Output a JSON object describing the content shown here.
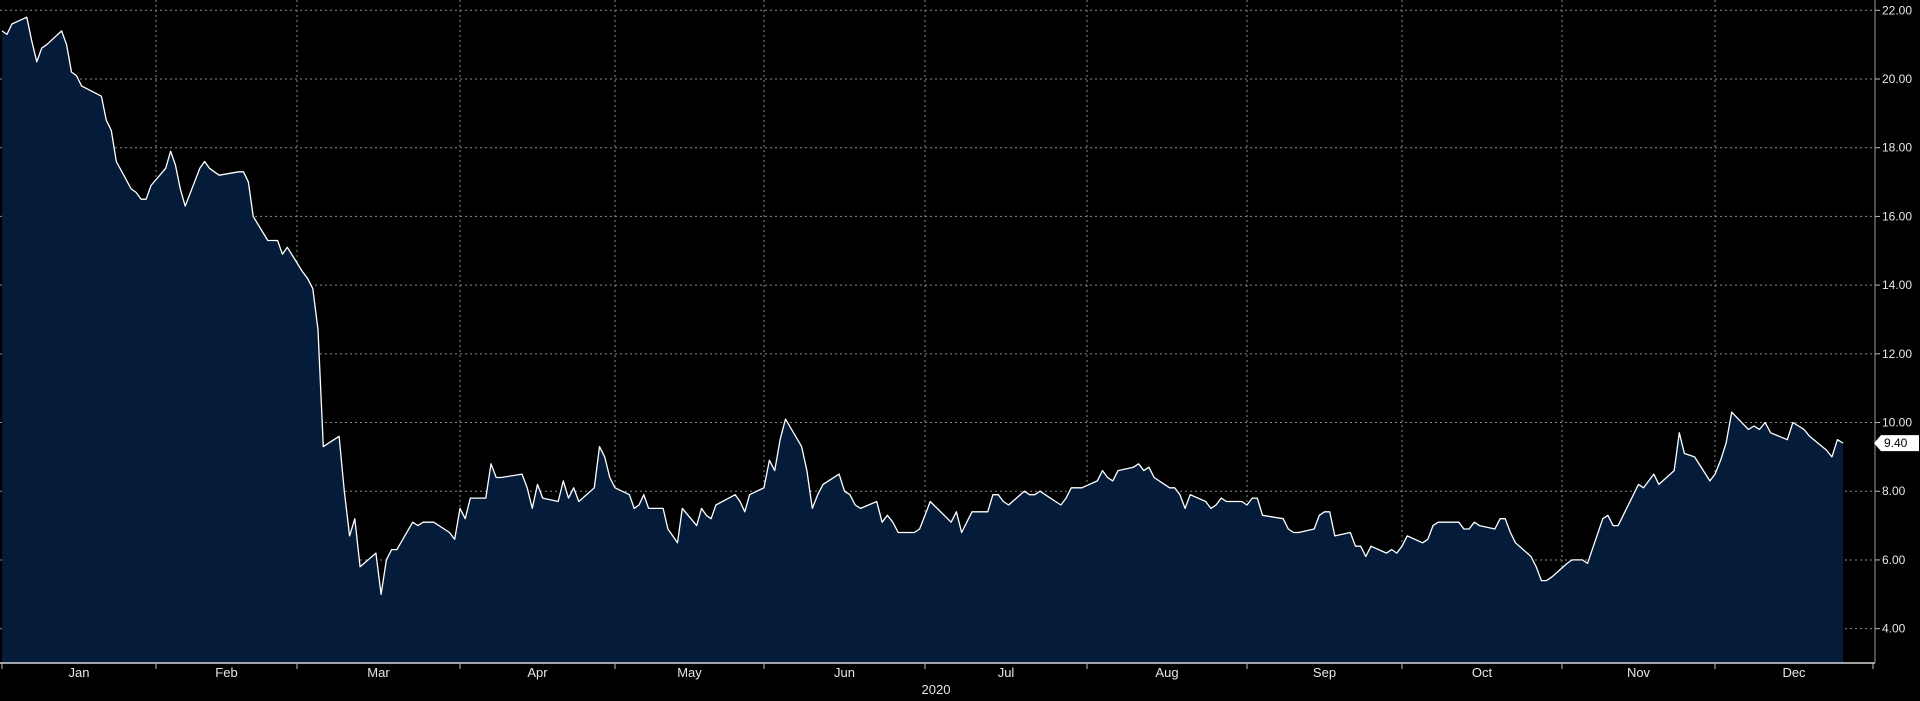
{
  "chart_data": {
    "type": "area",
    "x_label": "2020",
    "months": [
      "Jan",
      "Feb",
      "Mar",
      "Apr",
      "May",
      "Jun",
      "Jul",
      "Aug",
      "Sep",
      "Oct",
      "Nov",
      "Dec"
    ],
    "ylim": [
      3.0,
      22.3
    ],
    "yticks": [
      "4.00",
      "6.00",
      "8.00",
      "10.00",
      "12.00",
      "14.00",
      "16.00",
      "18.00",
      "20.00",
      "22.00"
    ],
    "grid": true,
    "y_axis_position": "right",
    "last_value_label": "9.40",
    "colors": {
      "background": "#000000",
      "fill": "#041c3a",
      "line": "#ffffff",
      "grid": "#8a8a8a",
      "text": "#e6e6e6"
    },
    "series": [
      {
        "points": [
          [
            "2020-01-01",
            21.4
          ],
          [
            "2020-01-02",
            21.3
          ],
          [
            "2020-01-03",
            21.6
          ],
          [
            "2020-01-06",
            21.8
          ],
          [
            "2020-01-07",
            21.1
          ],
          [
            "2020-01-08",
            20.5
          ],
          [
            "2020-01-09",
            20.9
          ],
          [
            "2020-01-10",
            21.0
          ],
          [
            "2020-01-13",
            21.4
          ],
          [
            "2020-01-14",
            21.0
          ],
          [
            "2020-01-15",
            20.2
          ],
          [
            "2020-01-16",
            20.1
          ],
          [
            "2020-01-17",
            19.8
          ],
          [
            "2020-01-21",
            19.5
          ],
          [
            "2020-01-22",
            18.8
          ],
          [
            "2020-01-23",
            18.5
          ],
          [
            "2020-01-24",
            17.6
          ],
          [
            "2020-01-27",
            16.8
          ],
          [
            "2020-01-28",
            16.7
          ],
          [
            "2020-01-29",
            16.5
          ],
          [
            "2020-01-30",
            16.5
          ],
          [
            "2020-01-31",
            16.9
          ],
          [
            "2020-02-03",
            17.4
          ],
          [
            "2020-02-04",
            17.9
          ],
          [
            "2020-02-05",
            17.5
          ],
          [
            "2020-02-06",
            16.8
          ],
          [
            "2020-02-07",
            16.3
          ],
          [
            "2020-02-10",
            17.4
          ],
          [
            "2020-02-11",
            17.6
          ],
          [
            "2020-02-12",
            17.4
          ],
          [
            "2020-02-13",
            17.3
          ],
          [
            "2020-02-14",
            17.2
          ],
          [
            "2020-02-18",
            17.3
          ],
          [
            "2020-02-19",
            17.3
          ],
          [
            "2020-02-20",
            17.0
          ],
          [
            "2020-02-21",
            16.0
          ],
          [
            "2020-02-24",
            15.3
          ],
          [
            "2020-02-25",
            15.3
          ],
          [
            "2020-02-26",
            15.3
          ],
          [
            "2020-02-27",
            14.9
          ],
          [
            "2020-02-28",
            15.1
          ],
          [
            "2020-03-02",
            14.4
          ],
          [
            "2020-03-03",
            14.2
          ],
          [
            "2020-03-04",
            13.9
          ],
          [
            "2020-03-05",
            12.7
          ],
          [
            "2020-03-06",
            9.3
          ],
          [
            "2020-03-09",
            9.6
          ],
          [
            "2020-03-10",
            8.0
          ],
          [
            "2020-03-11",
            6.7
          ],
          [
            "2020-03-12",
            7.2
          ],
          [
            "2020-03-13",
            5.8
          ],
          [
            "2020-03-16",
            6.2
          ],
          [
            "2020-03-17",
            5.0
          ],
          [
            "2020-03-18",
            6.0
          ],
          [
            "2020-03-19",
            6.3
          ],
          [
            "2020-03-20",
            6.3
          ],
          [
            "2020-03-23",
            7.1
          ],
          [
            "2020-03-24",
            7.0
          ],
          [
            "2020-03-25",
            7.1
          ],
          [
            "2020-03-26",
            7.1
          ],
          [
            "2020-03-27",
            7.1
          ],
          [
            "2020-03-30",
            6.8
          ],
          [
            "2020-03-31",
            6.6
          ],
          [
            "2020-04-01",
            7.5
          ],
          [
            "2020-04-02",
            7.2
          ],
          [
            "2020-04-03",
            7.8
          ],
          [
            "2020-04-06",
            7.8
          ],
          [
            "2020-04-07",
            8.8
          ],
          [
            "2020-04-08",
            8.4
          ],
          [
            "2020-04-09",
            8.4
          ],
          [
            "2020-04-13",
            8.5
          ],
          [
            "2020-04-14",
            8.1
          ],
          [
            "2020-04-15",
            7.5
          ],
          [
            "2020-04-16",
            8.2
          ],
          [
            "2020-04-17",
            7.8
          ],
          [
            "2020-04-20",
            7.7
          ],
          [
            "2020-04-21",
            8.3
          ],
          [
            "2020-04-22",
            7.8
          ],
          [
            "2020-04-23",
            8.1
          ],
          [
            "2020-04-24",
            7.7
          ],
          [
            "2020-04-27",
            8.1
          ],
          [
            "2020-04-28",
            9.3
          ],
          [
            "2020-04-29",
            9.0
          ],
          [
            "2020-04-30",
            8.4
          ],
          [
            "2020-05-01",
            8.1
          ],
          [
            "2020-05-04",
            7.9
          ],
          [
            "2020-05-05",
            7.5
          ],
          [
            "2020-05-06",
            7.6
          ],
          [
            "2020-05-07",
            7.9
          ],
          [
            "2020-05-08",
            7.5
          ],
          [
            "2020-05-11",
            7.5
          ],
          [
            "2020-05-12",
            6.9
          ],
          [
            "2020-05-13",
            6.7
          ],
          [
            "2020-05-14",
            6.5
          ],
          [
            "2020-05-15",
            7.5
          ],
          [
            "2020-05-18",
            7.0
          ],
          [
            "2020-05-19",
            7.5
          ],
          [
            "2020-05-20",
            7.3
          ],
          [
            "2020-05-21",
            7.2
          ],
          [
            "2020-05-22",
            7.6
          ],
          [
            "2020-05-26",
            7.9
          ],
          [
            "2020-05-27",
            7.7
          ],
          [
            "2020-05-28",
            7.4
          ],
          [
            "2020-05-29",
            7.9
          ],
          [
            "2020-06-01",
            8.1
          ],
          [
            "2020-06-02",
            8.9
          ],
          [
            "2020-06-03",
            8.6
          ],
          [
            "2020-06-04",
            9.5
          ],
          [
            "2020-06-05",
            10.1
          ],
          [
            "2020-06-08",
            9.3
          ],
          [
            "2020-06-09",
            8.6
          ],
          [
            "2020-06-10",
            7.5
          ],
          [
            "2020-06-11",
            7.9
          ],
          [
            "2020-06-12",
            8.2
          ],
          [
            "2020-06-15",
            8.5
          ],
          [
            "2020-06-16",
            8.0
          ],
          [
            "2020-06-17",
            7.9
          ],
          [
            "2020-06-18",
            7.6
          ],
          [
            "2020-06-19",
            7.5
          ],
          [
            "2020-06-22",
            7.7
          ],
          [
            "2020-06-23",
            7.1
          ],
          [
            "2020-06-24",
            7.3
          ],
          [
            "2020-06-25",
            7.1
          ],
          [
            "2020-06-26",
            6.8
          ],
          [
            "2020-06-29",
            6.8
          ],
          [
            "2020-06-30",
            6.9
          ],
          [
            "2020-07-01",
            7.3
          ],
          [
            "2020-07-02",
            7.7
          ],
          [
            "2020-07-06",
            7.1
          ],
          [
            "2020-07-07",
            7.4
          ],
          [
            "2020-07-08",
            6.8
          ],
          [
            "2020-07-09",
            7.1
          ],
          [
            "2020-07-10",
            7.4
          ],
          [
            "2020-07-13",
            7.4
          ],
          [
            "2020-07-14",
            7.9
          ],
          [
            "2020-07-15",
            7.9
          ],
          [
            "2020-07-16",
            7.7
          ],
          [
            "2020-07-17",
            7.6
          ],
          [
            "2020-07-20",
            8.0
          ],
          [
            "2020-07-21",
            7.9
          ],
          [
            "2020-07-22",
            7.9
          ],
          [
            "2020-07-23",
            8.0
          ],
          [
            "2020-07-24",
            7.9
          ],
          [
            "2020-07-27",
            7.6
          ],
          [
            "2020-07-28",
            7.8
          ],
          [
            "2020-07-29",
            8.1
          ],
          [
            "2020-07-30",
            8.1
          ],
          [
            "2020-07-31",
            8.1
          ],
          [
            "2020-08-03",
            8.3
          ],
          [
            "2020-08-04",
            8.6
          ],
          [
            "2020-08-05",
            8.4
          ],
          [
            "2020-08-06",
            8.3
          ],
          [
            "2020-08-07",
            8.6
          ],
          [
            "2020-08-10",
            8.7
          ],
          [
            "2020-08-11",
            8.8
          ],
          [
            "2020-08-12",
            8.6
          ],
          [
            "2020-08-13",
            8.7
          ],
          [
            "2020-08-14",
            8.4
          ],
          [
            "2020-08-17",
            8.1
          ],
          [
            "2020-08-18",
            8.1
          ],
          [
            "2020-08-19",
            7.9
          ],
          [
            "2020-08-20",
            7.5
          ],
          [
            "2020-08-21",
            7.9
          ],
          [
            "2020-08-24",
            7.7
          ],
          [
            "2020-08-25",
            7.5
          ],
          [
            "2020-08-26",
            7.6
          ],
          [
            "2020-08-27",
            7.8
          ],
          [
            "2020-08-28",
            7.7
          ],
          [
            "2020-08-31",
            7.7
          ],
          [
            "2020-09-01",
            7.6
          ],
          [
            "2020-09-02",
            7.8
          ],
          [
            "2020-09-03",
            7.8
          ],
          [
            "2020-09-04",
            7.3
          ],
          [
            "2020-09-08",
            7.2
          ],
          [
            "2020-09-09",
            6.9
          ],
          [
            "2020-09-10",
            6.8
          ],
          [
            "2020-09-11",
            6.8
          ],
          [
            "2020-09-14",
            6.9
          ],
          [
            "2020-09-15",
            7.3
          ],
          [
            "2020-09-16",
            7.4
          ],
          [
            "2020-09-17",
            7.4
          ],
          [
            "2020-09-18",
            6.7
          ],
          [
            "2020-09-21",
            6.8
          ],
          [
            "2020-09-22",
            6.4
          ],
          [
            "2020-09-23",
            6.4
          ],
          [
            "2020-09-24",
            6.1
          ],
          [
            "2020-09-25",
            6.4
          ],
          [
            "2020-09-28",
            6.2
          ],
          [
            "2020-09-29",
            6.3
          ],
          [
            "2020-09-30",
            6.2
          ],
          [
            "2020-10-01",
            6.4
          ],
          [
            "2020-10-02",
            6.7
          ],
          [
            "2020-10-05",
            6.5
          ],
          [
            "2020-10-06",
            6.6
          ],
          [
            "2020-10-07",
            7.0
          ],
          [
            "2020-10-08",
            7.1
          ],
          [
            "2020-10-09",
            7.1
          ],
          [
            "2020-10-12",
            7.1
          ],
          [
            "2020-10-13",
            6.9
          ],
          [
            "2020-10-14",
            6.9
          ],
          [
            "2020-10-15",
            7.1
          ],
          [
            "2020-10-16",
            7.0
          ],
          [
            "2020-10-19",
            6.9
          ],
          [
            "2020-10-20",
            7.2
          ],
          [
            "2020-10-21",
            7.2
          ],
          [
            "2020-10-22",
            6.8
          ],
          [
            "2020-10-23",
            6.5
          ],
          [
            "2020-10-26",
            6.1
          ],
          [
            "2020-10-27",
            5.8
          ],
          [
            "2020-10-28",
            5.4
          ],
          [
            "2020-10-29",
            5.4
          ],
          [
            "2020-10-30",
            5.5
          ],
          [
            "2020-11-02",
            5.9
          ],
          [
            "2020-11-03",
            6.0
          ],
          [
            "2020-11-04",
            6.0
          ],
          [
            "2020-11-05",
            6.0
          ],
          [
            "2020-11-06",
            5.9
          ],
          [
            "2020-11-09",
            7.2
          ],
          [
            "2020-11-10",
            7.3
          ],
          [
            "2020-11-11",
            7.0
          ],
          [
            "2020-11-12",
            7.0
          ],
          [
            "2020-11-13",
            7.3
          ],
          [
            "2020-11-16",
            8.2
          ],
          [
            "2020-11-17",
            8.1
          ],
          [
            "2020-11-18",
            8.3
          ],
          [
            "2020-11-19",
            8.5
          ],
          [
            "2020-11-20",
            8.2
          ],
          [
            "2020-11-23",
            8.6
          ],
          [
            "2020-11-24",
            9.7
          ],
          [
            "2020-11-25",
            9.1
          ],
          [
            "2020-11-27",
            9.0
          ],
          [
            "2020-11-30",
            8.3
          ],
          [
            "2020-12-01",
            8.5
          ],
          [
            "2020-12-02",
            8.9
          ],
          [
            "2020-12-03",
            9.4
          ],
          [
            "2020-12-04",
            10.3
          ],
          [
            "2020-12-07",
            9.8
          ],
          [
            "2020-12-08",
            9.9
          ],
          [
            "2020-12-09",
            9.8
          ],
          [
            "2020-12-10",
            10.0
          ],
          [
            "2020-12-11",
            9.7
          ],
          [
            "2020-12-14",
            9.5
          ],
          [
            "2020-12-15",
            10.0
          ],
          [
            "2020-12-16",
            9.9
          ],
          [
            "2020-12-17",
            9.8
          ],
          [
            "2020-12-18",
            9.6
          ],
          [
            "2020-12-21",
            9.2
          ],
          [
            "2020-12-22",
            9.0
          ],
          [
            "2020-12-23",
            9.5
          ],
          [
            "2020-12-24",
            9.4
          ]
        ]
      }
    ]
  }
}
